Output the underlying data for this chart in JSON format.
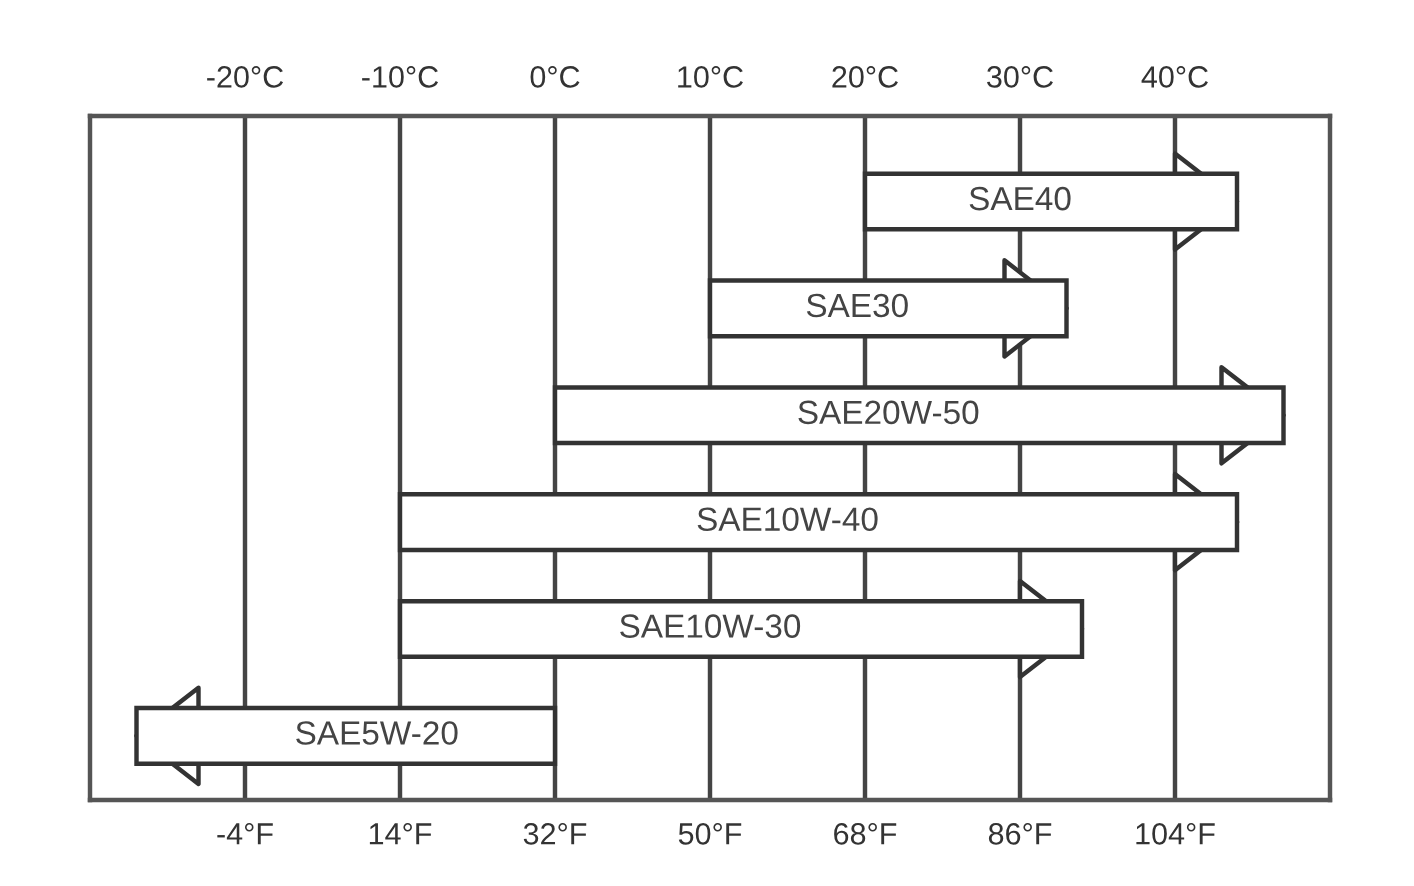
{
  "chart_data": {
    "type": "bar",
    "orientation": "horizontal",
    "categories": [
      "SAE40",
      "SAE30",
      "SAE20W-50",
      "SAE10W-40",
      "SAE10W-30",
      "SAE5W-20"
    ],
    "base": [
      20,
      10,
      0,
      -10,
      -10,
      0
    ],
    "values": [
      24,
      23,
      47,
      54,
      44,
      -27
    ],
    "color": "#ffffff",
    "xlim": [
      -30,
      50
    ],
    "xticks": [
      {
        "value": -20,
        "label": "-20°C"
      },
      {
        "value": -10,
        "label": "-10°C"
      },
      {
        "value": 0,
        "label": "0°C"
      },
      {
        "value": 10,
        "label": "10°C"
      },
      {
        "value": 20,
        "label": "20°C"
      },
      {
        "value": 30,
        "label": "30°C"
      },
      {
        "value": 40,
        "label": "40°C"
      }
    ],
    "x2lim": [
      -22,
      122
    ],
    "x2ticks": [
      {
        "value": -4,
        "label": "-4°F"
      },
      {
        "value": 14,
        "label": "14°F"
      },
      {
        "value": 32,
        "label": "32°F"
      },
      {
        "value": 50,
        "label": "50°F"
      },
      {
        "value": 68,
        "label": "68°F"
      },
      {
        "value": 86,
        "label": "86°F"
      },
      {
        "value": 104,
        "label": "104°F"
      }
    ],
    "grid": "x"
  }
}
